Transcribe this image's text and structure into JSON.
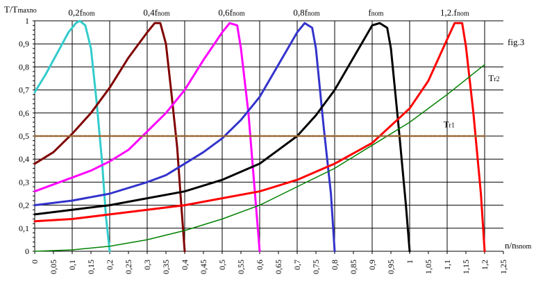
{
  "chart_data": {
    "type": "line",
    "ylabel": "T/T",
    "ylabel_sub": "maxno",
    "xlabel": "n/n",
    "xlabel_sub": "snom",
    "figure_label": "fig.3",
    "xlim": [
      0,
      1.25
    ],
    "ylim": [
      0,
      1
    ],
    "grid": true,
    "x_ticks": [
      "0",
      "0,05",
      "0,1",
      "0,15",
      "0,2",
      "0,25",
      "0,3",
      "0,35",
      "0,4",
      "0,45",
      "0,5",
      "0,55",
      "0,6",
      "0,65",
      "0,7",
      "0,75",
      "0,8",
      "0,85",
      "0,9",
      "0,95",
      "1",
      "1,05",
      "1,1",
      "1,15",
      "1,2",
      "1,25"
    ],
    "y_ticks": [
      "0",
      "0,1",
      "0,2",
      "0,3",
      "0,4",
      "0,5",
      "0,6",
      "0,7",
      "0,8",
      "0,9",
      "1"
    ],
    "series": [
      {
        "name": "0,2f",
        "name_sub": "nom",
        "color": "#33cccc",
        "points": [
          [
            0,
            0.69
          ],
          [
            0.03,
            0.77
          ],
          [
            0.06,
            0.86
          ],
          [
            0.09,
            0.95
          ],
          [
            0.11,
            0.99
          ],
          [
            0.12,
            1.0
          ],
          [
            0.135,
            0.98
          ],
          [
            0.15,
            0.88
          ],
          [
            0.165,
            0.65
          ],
          [
            0.18,
            0.38
          ],
          [
            0.19,
            0.15
          ],
          [
            0.2,
            0
          ]
        ]
      },
      {
        "name": "0,4f",
        "name_sub": "nom",
        "color": "#800000",
        "points": [
          [
            0,
            0.38
          ],
          [
            0.05,
            0.43
          ],
          [
            0.1,
            0.51
          ],
          [
            0.15,
            0.6
          ],
          [
            0.2,
            0.71
          ],
          [
            0.25,
            0.84
          ],
          [
            0.3,
            0.95
          ],
          [
            0.32,
            0.99
          ],
          [
            0.335,
            0.99
          ],
          [
            0.35,
            0.9
          ],
          [
            0.365,
            0.68
          ],
          [
            0.38,
            0.45
          ],
          [
            0.39,
            0.22
          ],
          [
            0.4,
            0
          ]
        ]
      },
      {
        "name": "0,6f",
        "name_sub": "nom",
        "color": "#ff00ff",
        "points": [
          [
            0,
            0.26
          ],
          [
            0.05,
            0.29
          ],
          [
            0.1,
            0.32
          ],
          [
            0.15,
            0.35
          ],
          [
            0.2,
            0.39
          ],
          [
            0.25,
            0.44
          ],
          [
            0.3,
            0.52
          ],
          [
            0.35,
            0.6
          ],
          [
            0.4,
            0.7
          ],
          [
            0.45,
            0.83
          ],
          [
            0.5,
            0.95
          ],
          [
            0.52,
            0.99
          ],
          [
            0.54,
            0.98
          ],
          [
            0.55,
            0.88
          ],
          [
            0.57,
            0.6
          ],
          [
            0.585,
            0.3
          ],
          [
            0.6,
            0
          ]
        ]
      },
      {
        "name": "0,8f",
        "name_sub": "nom",
        "color": "#3333cc",
        "points": [
          [
            0,
            0.2
          ],
          [
            0.1,
            0.22
          ],
          [
            0.2,
            0.25
          ],
          [
            0.3,
            0.3
          ],
          [
            0.35,
            0.33
          ],
          [
            0.4,
            0.38
          ],
          [
            0.45,
            0.43
          ],
          [
            0.5,
            0.49
          ],
          [
            0.55,
            0.57
          ],
          [
            0.6,
            0.67
          ],
          [
            0.65,
            0.81
          ],
          [
            0.7,
            0.95
          ],
          [
            0.72,
            0.99
          ],
          [
            0.74,
            0.97
          ],
          [
            0.75,
            0.88
          ],
          [
            0.77,
            0.55
          ],
          [
            0.79,
            0.25
          ],
          [
            0.8,
            0
          ]
        ]
      },
      {
        "name": "f",
        "name_sub": "nom",
        "color": "#000000",
        "points": [
          [
            0,
            0.16
          ],
          [
            0.1,
            0.18
          ],
          [
            0.2,
            0.2
          ],
          [
            0.3,
            0.23
          ],
          [
            0.4,
            0.26
          ],
          [
            0.5,
            0.31
          ],
          [
            0.6,
            0.38
          ],
          [
            0.65,
            0.44
          ],
          [
            0.7,
            0.5
          ],
          [
            0.75,
            0.59
          ],
          [
            0.8,
            0.7
          ],
          [
            0.85,
            0.84
          ],
          [
            0.9,
            0.98
          ],
          [
            0.92,
            0.99
          ],
          [
            0.94,
            0.97
          ],
          [
            0.95,
            0.88
          ],
          [
            0.97,
            0.55
          ],
          [
            0.99,
            0.2
          ],
          [
            1.0,
            0
          ]
        ]
      },
      {
        "name": "1,2.f",
        "name_sub": "nom",
        "color": "#ff0000",
        "points": [
          [
            0,
            0.13
          ],
          [
            0.1,
            0.14
          ],
          [
            0.2,
            0.16
          ],
          [
            0.3,
            0.18
          ],
          [
            0.4,
            0.2
          ],
          [
            0.5,
            0.23
          ],
          [
            0.6,
            0.26
          ],
          [
            0.7,
            0.31
          ],
          [
            0.8,
            0.38
          ],
          [
            0.9,
            0.47
          ],
          [
            1.0,
            0.62
          ],
          [
            1.05,
            0.74
          ],
          [
            1.1,
            0.92
          ],
          [
            1.12,
            0.99
          ],
          [
            1.14,
            0.99
          ],
          [
            1.15,
            0.89
          ],
          [
            1.17,
            0.6
          ],
          [
            1.19,
            0.25
          ],
          [
            1.2,
            0
          ]
        ]
      },
      {
        "name": "T",
        "name_sub": "r2",
        "color": "#008000",
        "points": [
          [
            0,
            0
          ],
          [
            0.1,
            0.006
          ],
          [
            0.2,
            0.022
          ],
          [
            0.3,
            0.05
          ],
          [
            0.4,
            0.09
          ],
          [
            0.5,
            0.14
          ],
          [
            0.6,
            0.2
          ],
          [
            0.7,
            0.28
          ],
          [
            0.8,
            0.36
          ],
          [
            0.9,
            0.46
          ],
          [
            1.0,
            0.56
          ],
          [
            1.1,
            0.68
          ],
          [
            1.2,
            0.81
          ]
        ]
      },
      {
        "name": "T",
        "name_sub": "r1",
        "color": "#996633",
        "dashed": true,
        "points": [
          [
            0,
            0.5
          ],
          [
            1.2,
            0.5
          ]
        ]
      }
    ],
    "annotations": [
      {
        "text": "0,2f",
        "sub": "nom",
        "x": 0.125,
        "y": 1.035
      },
      {
        "text": "0,4f",
        "sub": "nom",
        "x": 0.325,
        "y": 1.035
      },
      {
        "text": "0,6f",
        "sub": "nom",
        "x": 0.525,
        "y": 1.035
      },
      {
        "text": "0,8f",
        "sub": "nom",
        "x": 0.725,
        "y": 1.035
      },
      {
        "text": "f",
        "sub": "nom",
        "x": 0.91,
        "y": 1.035
      },
      {
        "text": "1,2.f",
        "sub": "nom",
        "x": 1.12,
        "y": 1.035
      },
      {
        "text": "T",
        "sub": "r2",
        "x": 1.21,
        "y": 0.75
      },
      {
        "text": "T",
        "sub": "r1",
        "x": 1.09,
        "y": 0.55
      }
    ]
  }
}
